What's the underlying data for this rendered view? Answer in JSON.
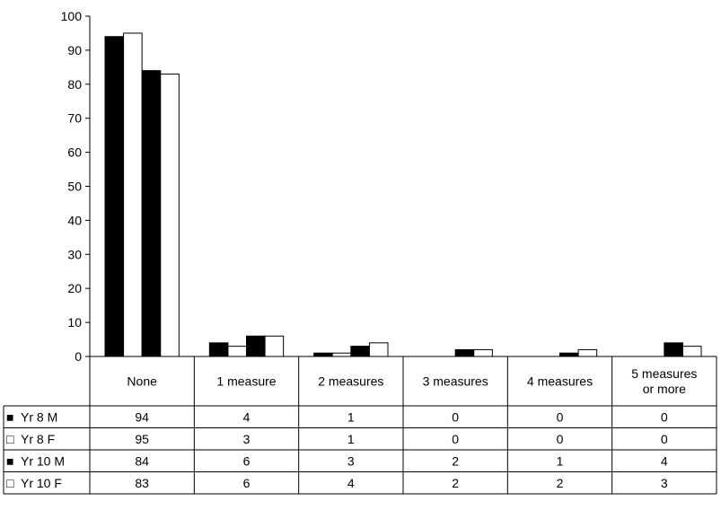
{
  "chart_data": {
    "type": "bar",
    "categories": [
      "None",
      "1 measure",
      "2 measures",
      "3 measures",
      "4 measures",
      "5 measures or more"
    ],
    "category_lines": [
      [
        "None"
      ],
      [
        "1 measure"
      ],
      [
        "2 measures"
      ],
      [
        "3 measures"
      ],
      [
        "4 measures"
      ],
      [
        "5 measures",
        "or more"
      ]
    ],
    "yticks": [
      "0",
      "10",
      "20",
      "30",
      "40",
      "50",
      "60",
      "70",
      "80",
      "90",
      "100"
    ],
    "ylim": [
      0,
      100
    ],
    "series": [
      {
        "name": "Yr 8 M",
        "marker": "■",
        "color": "#000000",
        "values": [
          94,
          4,
          1,
          0,
          0,
          0
        ],
        "labels": [
          "94",
          "4",
          "1",
          "0",
          "0",
          "0"
        ]
      },
      {
        "name": "Yr 8 F",
        "marker": "□",
        "color": "#ffffff",
        "values": [
          95,
          3,
          1,
          0,
          0,
          0
        ],
        "labels": [
          "95",
          "3",
          "1",
          "0",
          "0",
          "0"
        ]
      },
      {
        "name": "Yr 10 M",
        "marker": "■",
        "color": "#000000",
        "values": [
          84,
          6,
          3,
          2,
          1,
          4
        ],
        "labels": [
          "84",
          "6",
          "3",
          "2",
          "1",
          "4"
        ]
      },
      {
        "name": "Yr 10 F",
        "marker": "□",
        "color": "#ffffff",
        "values": [
          83,
          6,
          4,
          2,
          2,
          3
        ],
        "labels": [
          "83",
          "6",
          "4",
          "2",
          "2",
          "3"
        ]
      }
    ],
    "grid": false,
    "legend": "data-table"
  }
}
